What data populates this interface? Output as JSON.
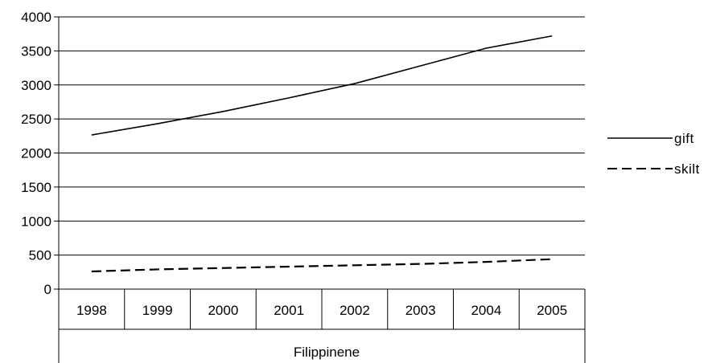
{
  "chart_data": {
    "type": "line",
    "categories": [
      "1998",
      "1999",
      "2000",
      "2001",
      "2002",
      "2003",
      "2004",
      "2005"
    ],
    "group_label": "Filippinene",
    "ylim": [
      0,
      4000
    ],
    "yticks": [
      "0",
      "500",
      "1000",
      "1500",
      "2000",
      "2500",
      "3000",
      "3500",
      "4000"
    ],
    "grid": true,
    "legend_position": "right",
    "series": [
      {
        "name": "gift",
        "style": "solid",
        "color": "#000000",
        "values": [
          2265,
          2430,
          2610,
          2810,
          3020,
          3280,
          3540,
          3720
        ]
      },
      {
        "name": "skilt",
        "style": "dashed",
        "color": "#000000",
        "values": [
          260,
          290,
          310,
          330,
          350,
          370,
          400,
          440
        ]
      }
    ]
  }
}
